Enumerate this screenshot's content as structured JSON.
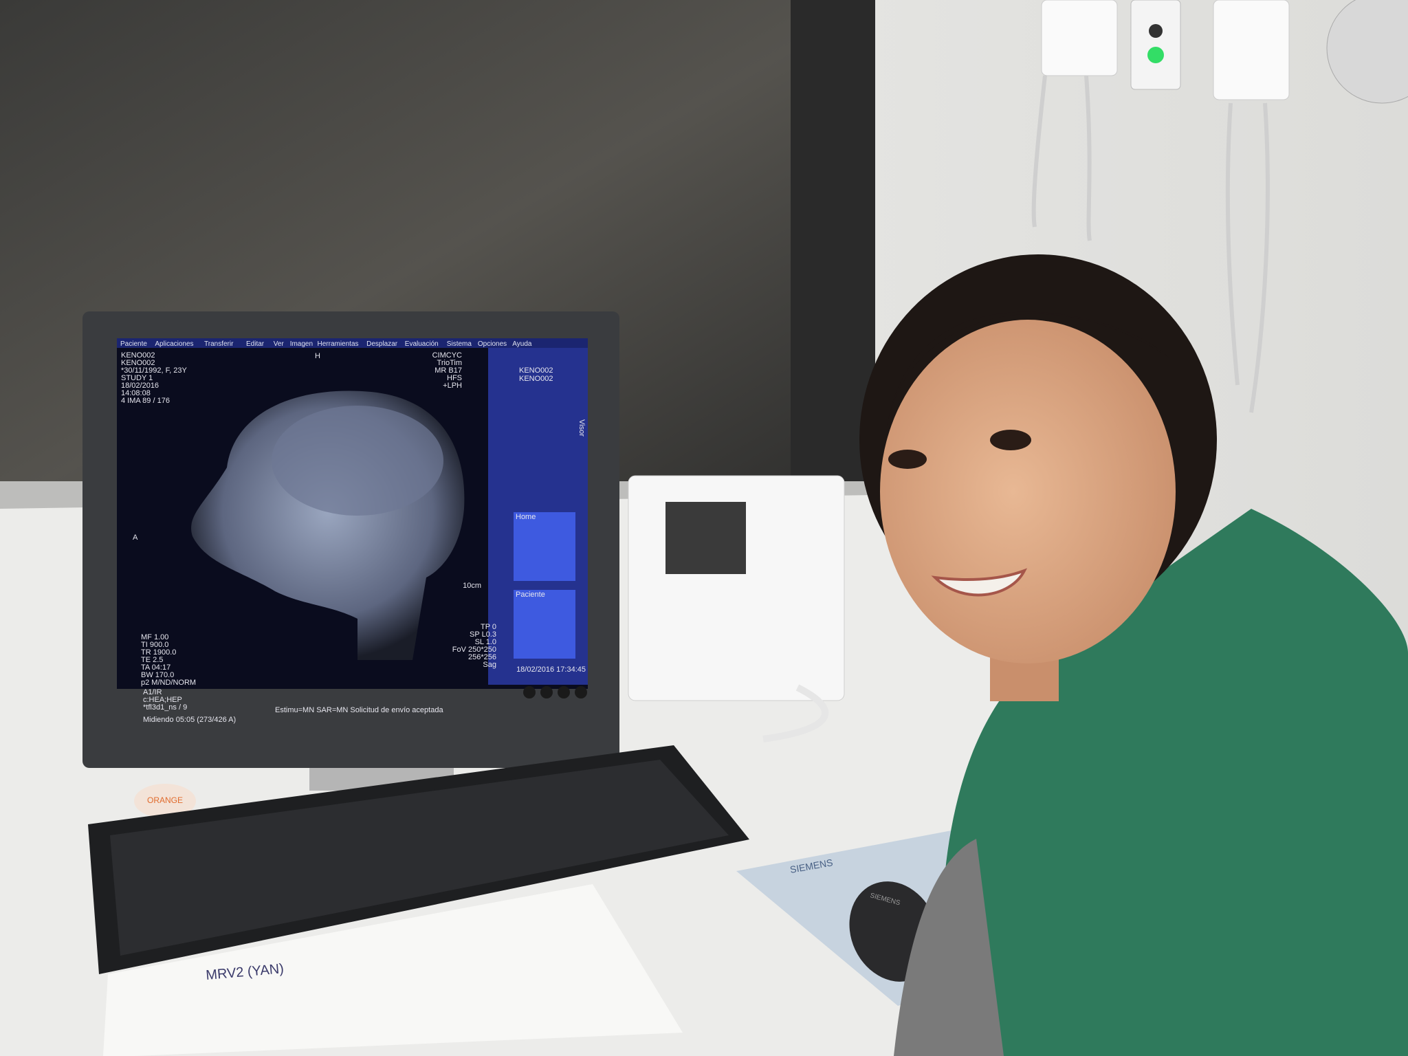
{
  "screen": {
    "menu": [
      "Paciente",
      "Aplicaciones",
      "Transferir",
      "Editar",
      "Ver",
      "Imagen",
      "Herramientas",
      "Desplazar",
      "Evaluación",
      "Sistema",
      "Opciones",
      "Ayuda"
    ],
    "patient_info": [
      "KENO002",
      "KENO002",
      "*30/11/1992, F, 23Y",
      "STUDY 1",
      "18/02/2016",
      "14:08:08",
      "4 IMA 89 / 176"
    ],
    "orientation_top": "H",
    "orientation_left": "A",
    "scanner_info": [
      "CIMCYC",
      "TrioTim",
      "MR B17",
      "HFS",
      "+LPH"
    ],
    "sequence_info": [
      "MF 1.00",
      "TI 900.0",
      "TR 1900.0",
      "TE 2.5",
      "TA 04:17",
      "BW 170.0",
      "p2 M/ND/NORM"
    ],
    "protocol_info": [
      "A1/IR",
      "c:HEA;HEP",
      "*tfl3d1_ns / 9"
    ],
    "geometry_info": [
      "TP 0",
      "SP L0.3",
      "SL 1.0",
      "FoV 250*250",
      "256*256",
      "Sag"
    ],
    "scale": "10cm",
    "folders": [
      "KENO002",
      "KENO002"
    ],
    "side_tab": "Visor",
    "palette_tab": "Home",
    "patient_tab": "Paciente",
    "status": "Estimu=MN SAR=MN Solicitud de envío aceptada",
    "measure": "Midiendo 05:05 (273/426 A)",
    "datetime": "18/02/2016 17:34:45"
  },
  "labels": {
    "mousepad": "SIEMENS",
    "mouse": "SIEMENS",
    "sticker": "ORANGE"
  },
  "note": {
    "heading": "MRV2 (YAN)"
  }
}
